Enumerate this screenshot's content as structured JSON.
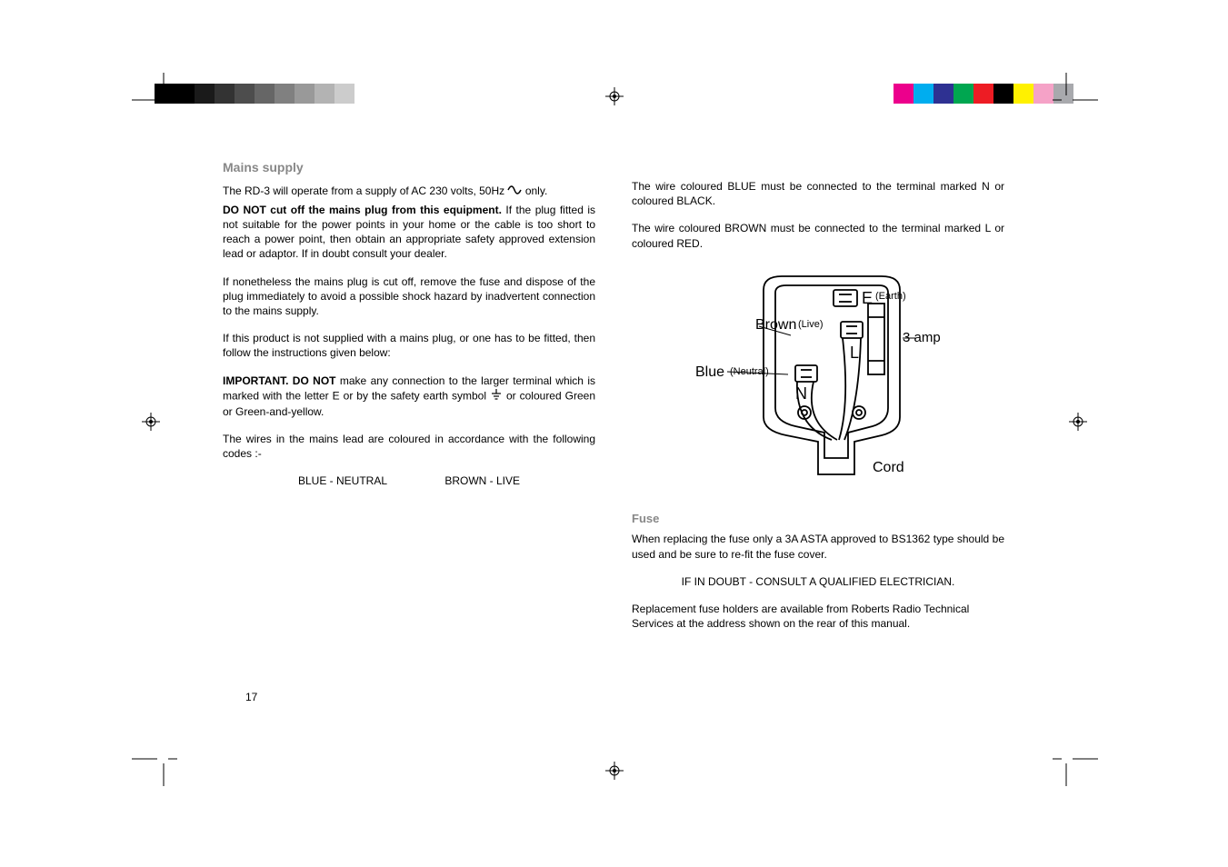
{
  "printBarLeft": [
    "#000000",
    "#000000",
    "#1a1a1a",
    "#333333",
    "#4d4d4d",
    "#666666",
    "#808080",
    "#999999",
    "#b3b3b3",
    "#cccccc",
    "#ffffff"
  ],
  "printBarRight": [
    "#ffffff",
    "#ec008c",
    "#00adef",
    "#2e3192",
    "#00a650",
    "#ed1c24",
    "#000000",
    "#fff100",
    "#f5a2c7",
    "#a8a9ad"
  ],
  "headings": {
    "mains": "Mains supply",
    "fuse": "Fuse"
  },
  "left": {
    "p1a": "The RD-3 will operate from a supply of AC 230 volts, 50Hz ",
    "p1b": " only.",
    "p2a": "DO NOT cut off the mains plug from this equipment.",
    "p2b": " If the plug fitted is not suitable for the power points in your home or the cable is too short to reach a power point, then obtain an appropriate safety approved extension lead or adaptor. If in doubt consult your dealer.",
    "p3": "If nonetheless the mains plug is cut off, remove the fuse and dispose of the plug immediately to avoid a possible shock hazard by inadvertent connection to the mains supply.",
    "p4": "If this product is not supplied with a mains plug, or one has to be fitted, then follow the instructions given below:",
    "p5a": "IMPORTANT. DO NOT",
    "p5b": " make any connection to the larger terminal which is marked with the letter E or by the safety earth symbol ",
    "p5c": "  or coloured Green or Green-and-yellow.",
    "p6": "The wires in the mains lead are coloured in accordance with the following codes :-",
    "code1": "BLUE - NEUTRAL",
    "code2": "BROWN - LIVE"
  },
  "right": {
    "p1": "The wire coloured BLUE must be connected to the terminal marked N or coloured BLACK.",
    "p2": "The wire coloured BROWN must be connected to the terminal marked L or coloured RED.",
    "p3": "When replacing the fuse only a 3A ASTA approved to BS1362 type should be used and be sure to re-fit the fuse cover.",
    "p4": "IF IN DOUBT - CONSULT  A  QUALIFIED ELECTRICIAN.",
    "p5": "Replacement fuse holders are available from Roberts Radio Technical Services  at the address shown on the rear of this manual."
  },
  "diagram": {
    "earth": "E",
    "earthNote": "(Earth)",
    "live": "L",
    "liveNote": "(Live)",
    "liveWire": "Brown",
    "neutral": "N",
    "neutralNote": "(Neutral)",
    "neutralWire": "Blue",
    "fuse": "3 amp",
    "cord": "Cord",
    "stroke": "#000000",
    "font": "Arial"
  },
  "pageNumber": "17"
}
